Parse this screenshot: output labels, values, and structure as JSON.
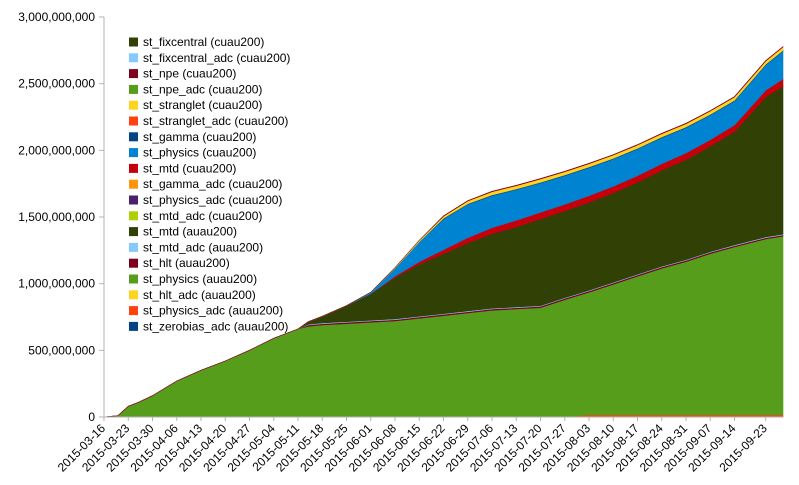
{
  "chart_data": {
    "type": "area",
    "stacked": true,
    "ylim": [
      0,
      3000000000
    ],
    "yticks": [
      "0",
      "500,000,000",
      "1,000,000,000",
      "1,500,000,000",
      "2,000,000,000",
      "2,500,000,000",
      "3,000,000,000"
    ],
    "ytick_values": [
      0,
      500000000,
      1000000000,
      1500000000,
      2000000000,
      2500000000,
      3000000000
    ],
    "xticks": [
      "2015-03-16",
      "2015-03-23",
      "2015-03-30",
      "2015-04-06",
      "2015-04-13",
      "2015-04-20",
      "2015-04-27",
      "2015-05-04",
      "2015-05-11",
      "2015-05-18",
      "2015-05-25",
      "2015-06-01",
      "2015-06-08",
      "2015-06-15",
      "2015-06-22",
      "2015-06-29",
      "2015-07-06",
      "2015-07-13",
      "2015-07-20",
      "2015-07-27",
      "2015-08-03",
      "2015-08-10",
      "2015-08-17",
      "2015-08-24",
      "2015-08-31",
      "2015-09-07",
      "2015-09-14",
      "2015-09-23"
    ],
    "x": [
      "2015-03-16",
      "2015-03-20",
      "2015-03-23",
      "2015-03-26",
      "2015-03-30",
      "2015-04-06",
      "2015-04-13",
      "2015-04-20",
      "2015-04-27",
      "2015-05-04",
      "2015-05-11",
      "2015-05-14",
      "2015-05-18",
      "2015-05-25",
      "2015-06-01",
      "2015-06-08",
      "2015-06-15",
      "2015-06-22",
      "2015-06-29",
      "2015-07-06",
      "2015-07-13",
      "2015-07-20",
      "2015-07-27",
      "2015-08-03",
      "2015-08-10",
      "2015-08-17",
      "2015-08-24",
      "2015-08-31",
      "2015-09-07",
      "2015-09-14",
      "2015-09-23",
      "2015-09-28"
    ],
    "grid": false,
    "legend_position": "top-left",
    "series": [
      {
        "name": "st_zerobias_adc (auau200)",
        "color": "#004586",
        "values": [
          0,
          0,
          0,
          0,
          0,
          0,
          0,
          0,
          0,
          0,
          0,
          0,
          0,
          0,
          0,
          0,
          0,
          0,
          0,
          0,
          0,
          0,
          0,
          0,
          0,
          0,
          0,
          0,
          0,
          0,
          0,
          0
        ]
      },
      {
        "name": "st_physics_adc (auau200)",
        "color": "#ff420e",
        "values": [
          0,
          0,
          0,
          0,
          0,
          0,
          0,
          0,
          0,
          0,
          0,
          0,
          0,
          0,
          0,
          0,
          0,
          0,
          0,
          0,
          0,
          0,
          0,
          15000000,
          15000000,
          15000000,
          15000000,
          15000000,
          15000000,
          15000000,
          15000000,
          15000000
        ]
      },
      {
        "name": "st_hlt_adc (auau200)",
        "color": "#ffd320",
        "values": [
          0,
          0,
          0,
          0,
          0,
          0,
          0,
          0,
          0,
          0,
          0,
          0,
          0,
          0,
          0,
          0,
          0,
          0,
          0,
          0,
          0,
          0,
          0,
          0,
          0,
          0,
          0,
          0,
          0,
          0,
          0,
          0
        ]
      },
      {
        "name": "st_physics (auau200)",
        "color": "#579d1c",
        "values": [
          0,
          10000000,
          80000000,
          110000000,
          160000000,
          270000000,
          350000000,
          420000000,
          500000000,
          590000000,
          660000000,
          680000000,
          690000000,
          700000000,
          710000000,
          720000000,
          740000000,
          760000000,
          780000000,
          800000000,
          810000000,
          820000000,
          880000000,
          920000000,
          980000000,
          1040000000,
          1100000000,
          1150000000,
          1210000000,
          1260000000,
          1320000000,
          1340000000
        ]
      },
      {
        "name": "st_hlt (auau200)",
        "color": "#7e0021",
        "values": [
          0,
          0,
          0,
          0,
          0,
          0,
          0,
          0,
          0,
          0,
          0,
          10000000,
          10000000,
          10000000,
          10000000,
          10000000,
          10000000,
          10000000,
          10000000,
          10000000,
          10000000,
          10000000,
          10000000,
          10000000,
          10000000,
          10000000,
          10000000,
          10000000,
          10000000,
          10000000,
          10000000,
          10000000
        ]
      },
      {
        "name": "st_mtd_adc (auau200)",
        "color": "#83caff",
        "values": [
          0,
          0,
          0,
          0,
          0,
          0,
          0,
          0,
          0,
          0,
          0,
          5000000,
          5000000,
          5000000,
          5000000,
          5000000,
          5000000,
          5000000,
          5000000,
          5000000,
          5000000,
          5000000,
          5000000,
          5000000,
          5000000,
          5000000,
          5000000,
          5000000,
          5000000,
          5000000,
          5000000,
          5000000
        ]
      },
      {
        "name": "st_mtd (auau200)",
        "color": "#314004",
        "values": [
          0,
          0,
          0,
          0,
          0,
          0,
          0,
          0,
          0,
          0,
          0,
          20000000,
          50000000,
          120000000,
          200000000,
          310000000,
          390000000,
          450000000,
          510000000,
          560000000,
          600000000,
          650000000,
          650000000,
          660000000,
          670000000,
          690000000,
          720000000,
          750000000,
          790000000,
          850000000,
          1050000000,
          1110000000
        ]
      },
      {
        "name": "st_mtd_adc (cuau200)",
        "color": "#aecf00",
        "values": [
          0,
          0,
          0,
          0,
          0,
          0,
          0,
          0,
          0,
          0,
          0,
          0,
          0,
          0,
          0,
          0,
          0,
          0,
          0,
          0,
          0,
          0,
          0,
          0,
          0,
          0,
          0,
          0,
          0,
          0,
          0,
          0
        ]
      },
      {
        "name": "st_physics_adc (cuau200)",
        "color": "#4b1f6f",
        "values": [
          0,
          0,
          0,
          0,
          0,
          0,
          0,
          0,
          0,
          0,
          0,
          0,
          0,
          0,
          0,
          0,
          0,
          0,
          0,
          0,
          0,
          0,
          0,
          0,
          0,
          0,
          0,
          0,
          0,
          0,
          0,
          0
        ]
      },
      {
        "name": "st_gamma_adc (cuau200)",
        "color": "#ff950e",
        "values": [
          0,
          0,
          0,
          0,
          0,
          0,
          0,
          0,
          0,
          0,
          0,
          0,
          0,
          0,
          0,
          0,
          0,
          0,
          0,
          0,
          0,
          0,
          0,
          0,
          0,
          0,
          0,
          0,
          0,
          0,
          0,
          0
        ]
      },
      {
        "name": "st_mtd (cuau200)",
        "color": "#c5000b",
        "values": [
          0,
          0,
          0,
          0,
          0,
          0,
          0,
          0,
          0,
          0,
          0,
          0,
          0,
          0,
          0,
          10000000,
          20000000,
          30000000,
          40000000,
          45000000,
          50000000,
          50000000,
          50000000,
          50000000,
          50000000,
          50000000,
          50000000,
          50000000,
          50000000,
          50000000,
          50000000,
          55000000
        ]
      },
      {
        "name": "st_physics (cuau200)",
        "color": "#0084d1",
        "values": [
          0,
          0,
          0,
          0,
          0,
          0,
          0,
          0,
          0,
          0,
          0,
          0,
          0,
          0,
          10000000,
          60000000,
          150000000,
          230000000,
          250000000,
          240000000,
          230000000,
          220000000,
          215000000,
          210000000,
          205000000,
          200000000,
          195000000,
          190000000,
          185000000,
          180000000,
          190000000,
          210000000
        ]
      },
      {
        "name": "st_gamma (cuau200)",
        "color": "#004586",
        "values": [
          0,
          0,
          0,
          0,
          0,
          0,
          0,
          0,
          0,
          0,
          0,
          0,
          0,
          0,
          0,
          0,
          0,
          5000000,
          5000000,
          5000000,
          5000000,
          5000000,
          5000000,
          5000000,
          5000000,
          5000000,
          5000000,
          5000000,
          5000000,
          5000000,
          5000000,
          5000000
        ]
      },
      {
        "name": "st_stranglet_adc (cuau200)",
        "color": "#ff420e",
        "values": [
          0,
          0,
          0,
          0,
          0,
          0,
          0,
          0,
          0,
          0,
          0,
          0,
          0,
          0,
          0,
          0,
          0,
          0,
          0,
          0,
          0,
          0,
          0,
          0,
          0,
          0,
          0,
          0,
          0,
          0,
          0,
          0
        ]
      },
      {
        "name": "st_stranglet (cuau200)",
        "color": "#ffd320",
        "values": [
          0,
          0,
          0,
          0,
          0,
          0,
          0,
          0,
          0,
          0,
          0,
          0,
          0,
          0,
          0,
          5000000,
          10000000,
          15000000,
          20000000,
          25000000,
          25000000,
          25000000,
          25000000,
          25000000,
          25000000,
          25000000,
          25000000,
          25000000,
          25000000,
          25000000,
          25000000,
          25000000
        ]
      },
      {
        "name": "st_npe_adc (cuau200)",
        "color": "#579d1c",
        "values": [
          0,
          0,
          0,
          0,
          0,
          0,
          0,
          0,
          0,
          0,
          0,
          0,
          0,
          0,
          0,
          0,
          0,
          0,
          0,
          0,
          0,
          0,
          0,
          0,
          0,
          0,
          0,
          0,
          0,
          0,
          0,
          0
        ]
      },
      {
        "name": "st_npe (cuau200)",
        "color": "#7e0021",
        "values": [
          0,
          0,
          0,
          0,
          0,
          0,
          0,
          0,
          0,
          0,
          0,
          0,
          0,
          0,
          0,
          0,
          0,
          3000000,
          3000000,
          3000000,
          3000000,
          3000000,
          3000000,
          3000000,
          3000000,
          3000000,
          3000000,
          3000000,
          3000000,
          3000000,
          3000000,
          3000000
        ]
      },
      {
        "name": "st_fixcentral_adc (cuau200)",
        "color": "#83caff",
        "values": [
          0,
          0,
          0,
          0,
          0,
          0,
          0,
          0,
          0,
          0,
          0,
          0,
          0,
          0,
          0,
          0,
          0,
          0,
          0,
          0,
          0,
          0,
          0,
          0,
          0,
          0,
          0,
          0,
          0,
          0,
          0,
          0
        ]
      },
      {
        "name": "st_fixcentral (cuau200)",
        "color": "#314004",
        "values": [
          0,
          0,
          0,
          0,
          0,
          0,
          0,
          0,
          0,
          0,
          0,
          0,
          0,
          0,
          0,
          0,
          0,
          0,
          0,
          0,
          0,
          0,
          0,
          0,
          0,
          0,
          0,
          0,
          0,
          0,
          0,
          0
        ]
      }
    ]
  }
}
